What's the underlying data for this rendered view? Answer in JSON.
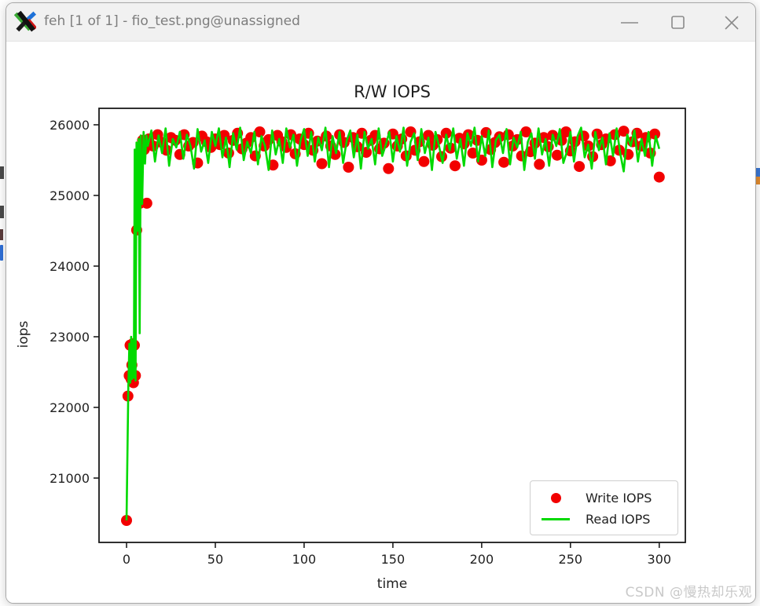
{
  "window": {
    "app_icon": "x11-logo",
    "title": "feh [1 of 1] - fio_test.png@unassigned",
    "controls": {
      "minimize": "minimize",
      "maximize": "maximize",
      "close": "close"
    }
  },
  "watermark": "CSDN @慢热却乐观",
  "chart_data": {
    "type": "line+scatter",
    "title": "R/W IOPS",
    "xlabel": "time",
    "ylabel": "iops",
    "xlim": [
      -15.5,
      314.7
    ],
    "ylim": [
      20089,
      26233
    ],
    "x_ticks": [
      0,
      50,
      100,
      150,
      200,
      250,
      300
    ],
    "y_ticks": [
      21000,
      22000,
      23000,
      24000,
      25000,
      26000
    ],
    "grid": false,
    "legend_position": "lower right",
    "legend": [
      {
        "label": "Write IOPS",
        "marker": "dot",
        "color": "#f20000"
      },
      {
        "label": "Read IOPS",
        "marker": "line",
        "color": "#00d900"
      }
    ],
    "series": [
      {
        "name": "Write IOPS",
        "type": "scatter",
        "color": "#f20000",
        "initial": [
          [
            0,
            20400
          ],
          [
            0.8,
            22160
          ],
          [
            1.5,
            22450
          ],
          [
            2,
            22880
          ],
          [
            2.6,
            22400
          ],
          [
            3,
            22600
          ],
          [
            3.4,
            22900
          ],
          [
            3.9,
            22350
          ],
          [
            4.4,
            22880
          ],
          [
            5,
            22450
          ],
          [
            5.7,
            24510
          ],
          [
            7.6,
            24890
          ],
          [
            8.2,
            25600
          ],
          [
            9,
            25780
          ],
          [
            10,
            25650
          ],
          [
            11.4,
            24890
          ]
        ],
        "plateau": {
          "t0": 12.5,
          "dt": 2.5,
          "values": [
            25800,
            25700,
            25860,
            25750,
            25640,
            25820,
            25780,
            25580,
            25860,
            25700,
            25750,
            25460,
            25840,
            25760,
            25680,
            25800,
            25720,
            25850,
            25600,
            25780,
            25880,
            25660,
            25740,
            25820,
            25560,
            25900,
            25700,
            25790,
            25430,
            25850,
            25760,
            25680,
            25860,
            25590,
            25800,
            25720,
            25880,
            25640,
            25770,
            25450,
            25840,
            25700,
            25580,
            25860,
            25750,
            25400,
            25820,
            25690,
            25880,
            25610,
            25780,
            25850,
            25660,
            25740,
            25380,
            25870,
            25700,
            25800,
            25560,
            25900,
            25640,
            25760,
            25480,
            25850,
            25710,
            25790,
            25550,
            25880,
            25670,
            25420,
            25810,
            25730,
            25860,
            25600,
            25780,
            25500,
            25890,
            25650,
            25750,
            25830,
            25470,
            25860,
            25700,
            25790,
            25560,
            25900,
            25620,
            25740,
            25440,
            25820,
            25690,
            25850,
            25570,
            25780,
            25900,
            25630,
            25760,
            25410,
            25840,
            25700,
            25550,
            25870,
            25720,
            25800,
            25490,
            25860,
            25640,
            25910,
            25580,
            25760,
            25880,
            25700,
            25820,
            25600,
            25870,
            25260
          ]
        }
      },
      {
        "name": "Read IOPS",
        "type": "line",
        "color": "#00d900",
        "initial": [
          [
            0,
            20400
          ],
          [
            1,
            22300
          ],
          [
            1.6,
            22900
          ],
          [
            2.1,
            22350
          ],
          [
            2.6,
            23000
          ],
          [
            3.1,
            22400
          ],
          [
            3.6,
            22950
          ],
          [
            4.1,
            22420
          ],
          [
            4.6,
            25650
          ],
          [
            5.1,
            22380
          ],
          [
            5.6,
            25750
          ],
          [
            6.2,
            24500
          ],
          [
            6.8,
            25800
          ],
          [
            7.4,
            23050
          ],
          [
            8,
            25850
          ],
          [
            8.8,
            24880
          ],
          [
            9.6,
            25900
          ],
          [
            10.4,
            25450
          ],
          [
            11.2,
            25850
          ]
        ],
        "plateau": {
          "t0": 12,
          "dt": 2,
          "values": [
            25700,
            25920,
            25480,
            25850,
            25600,
            25950,
            25420,
            25800,
            25680,
            25900,
            25520,
            25860,
            25700,
            25380,
            25940,
            25620,
            25780,
            25460,
            25900,
            25700,
            25950,
            25540,
            25820,
            25400,
            25880,
            25650,
            25960,
            25500,
            25760,
            25600,
            25900,
            25440,
            25840,
            25700,
            25360,
            25920,
            25580,
            25800,
            25460,
            25950,
            25680,
            25860,
            25420,
            25780,
            25940,
            25560,
            25900,
            25480,
            25820,
            25640,
            25960,
            25400,
            25840,
            25600,
            25900,
            25460,
            25780,
            25920,
            25540,
            25860,
            25380,
            25900,
            25660,
            25800,
            25440,
            25950,
            25560,
            25720,
            25900,
            25480,
            25840,
            25620,
            25960,
            25420,
            25760,
            25880,
            25500,
            25940,
            25600,
            25820,
            25360,
            25900,
            25700,
            25460,
            25860,
            25640,
            25950,
            25520,
            25800,
            25420,
            25880,
            25700,
            25960,
            25480,
            25840,
            25560,
            25920,
            25400,
            25780,
            25860,
            25600,
            25940,
            25440,
            25820,
            25680,
            25900,
            25360,
            25760,
            25880,
            25520,
            25950,
            25580,
            25800,
            25420,
            25860,
            25700,
            25940,
            25460,
            25620,
            25900,
            25480,
            25840,
            25960,
            25540,
            25720,
            25380,
            25900,
            25640,
            25820,
            25440,
            25880,
            25560,
            25950,
            25600,
            25340,
            25860,
            25700,
            25920,
            25480,
            25800,
            25560,
            25900,
            25420,
            25840,
            25660
          ]
        }
      }
    ]
  }
}
